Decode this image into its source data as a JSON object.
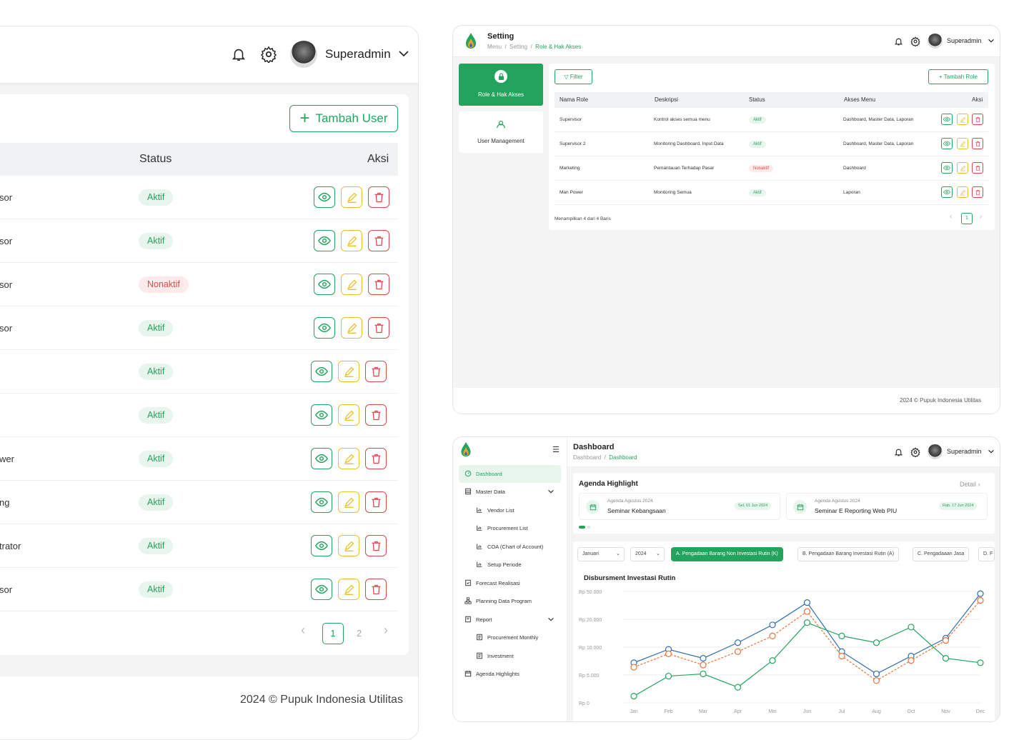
{
  "left": {
    "user_name": "Superadmin",
    "add_user_label": "Tambah User",
    "col_status": "Status",
    "col_aksi": "Aksi",
    "rows": [
      {
        "role": "sor",
        "status": "Aktif",
        "active": true
      },
      {
        "role": "sor",
        "status": "Aktif",
        "active": true
      },
      {
        "role": "sor",
        "status": "Nonaktif",
        "active": false
      },
      {
        "role": "sor",
        "status": "Aktif",
        "active": true
      },
      {
        "role": "",
        "status": "Aktif",
        "active": true
      },
      {
        "role": "",
        "status": "Aktif",
        "active": true
      },
      {
        "role": "wer",
        "status": "Aktif",
        "active": true
      },
      {
        "role": "ng",
        "status": "Aktif",
        "active": true
      },
      {
        "role": "trator",
        "status": "Aktif",
        "active": true
      },
      {
        "role": "sor",
        "status": "Aktif",
        "active": true
      }
    ],
    "pages": [
      "1",
      "2"
    ],
    "footer_year": "2024",
    "footer_company": "Pupuk Indonesia Utilitas"
  },
  "setting": {
    "title": "Setting",
    "breadcrumb": [
      "Menu",
      "Setting",
      "Role & Hak Akses"
    ],
    "user_name": "Superadmin",
    "side": [
      "Role & Hak Akses",
      "User Management"
    ],
    "filter_label": "Filter",
    "add_role_label": "Tambah Role",
    "columns": [
      "Nama Role",
      "Deskripsi",
      "Status",
      "Akses Menu",
      "Aksi"
    ],
    "rows": [
      {
        "name": "Supervisor",
        "desc": "Kontrol akses semua menu",
        "status": "Aktif",
        "active": true,
        "menu": "Dashboard, Master Data, Laporan"
      },
      {
        "name": "Supervisor 2",
        "desc": "Monitoring Dashboard, Input Data",
        "status": "Aktif",
        "active": true,
        "menu": "Dashboard, Master Data, Laporan"
      },
      {
        "name": "Marketing",
        "desc": "Pemantauan Terhadap Pasar",
        "status": "Nonaktif",
        "active": false,
        "menu": "Dashboard"
      },
      {
        "name": "Man Power",
        "desc": "Monitoring Semua",
        "status": "Aktif",
        "active": true,
        "menu": "Laporan"
      }
    ],
    "showing": "Menampilkan 4 dari 4 Baris",
    "page": "1",
    "footer_year": "2024",
    "footer_company": "Pupuk Indonesia Utilitas"
  },
  "dashboard": {
    "title": "Dashboard",
    "breadcrumb": [
      "Dashboard",
      "Dashboard"
    ],
    "user_name": "Superadmin",
    "menu": [
      {
        "label": "Dashboard",
        "level": 0,
        "active": true,
        "icon": "dashboard-icon"
      },
      {
        "label": "Master Data",
        "level": 0,
        "expand": true,
        "icon": "database-icon"
      },
      {
        "label": "Vendor List",
        "level": 1,
        "icon": "chart-icon"
      },
      {
        "label": "Procurement List",
        "level": 1,
        "icon": "chart-icon"
      },
      {
        "label": "COA (Chart of Account)",
        "level": 1,
        "icon": "chart-icon"
      },
      {
        "label": "Setup Periode",
        "level": 1,
        "icon": "chart-icon"
      },
      {
        "label": "Forecast Realisasi",
        "level": 0,
        "icon": "checklist-icon"
      },
      {
        "label": "Planning Data Program",
        "level": 0,
        "icon": "sitemap-icon"
      },
      {
        "label": "Report",
        "level": 0,
        "expand": true,
        "icon": "report-icon"
      },
      {
        "label": "Procurement Monthly",
        "level": 1,
        "icon": "doc-icon"
      },
      {
        "label": "Investment",
        "level": 1,
        "icon": "doc-icon"
      },
      {
        "label": "Agenda Highlights",
        "level": 0,
        "icon": "calendar-icon"
      }
    ],
    "agenda_title": "Agenda Highlight",
    "agenda_detail": "Detail",
    "agenda": [
      {
        "sub": "Agenda Agustus 2024",
        "title": "Seminar Kebangsaan",
        "date": "Sel, 01 Jun 2024"
      },
      {
        "sub": "Agenda Agustus 2024",
        "title": "Seminar E Reporting Web PIU",
        "date": "Rab, 17 Jun 2024"
      }
    ],
    "filters": {
      "month": "Januari",
      "year": "2024"
    },
    "tabs": [
      "A. Pengadaan Barang Non Investasi Rutin (K)",
      "B. Pengadaan Barang Investasi Rutin (A)",
      "C. Pengadaaan Jasa",
      "D. F"
    ]
  },
  "chart_data": {
    "type": "line",
    "title": "Disbursment Investasi Rutin",
    "categories": [
      "Jan",
      "Feb",
      "Mar",
      "Apr",
      "Mei",
      "Jun",
      "Jul",
      "Aug",
      "Oct",
      "Nov",
      "Dec"
    ],
    "ytick_labels": [
      "Rp 0",
      "Rp 5.000",
      "Rp 10.000",
      "Rp 20.000",
      "Rp 50.000"
    ],
    "series": [
      {
        "color": "#2f6fb3",
        "dash": false,
        "values": [
          1.8,
          2.4,
          2.0,
          2.7,
          3.5,
          4.5,
          2.3,
          1.3,
          2.1,
          2.9,
          4.9
        ]
      },
      {
        "color": "#e8743b",
        "dash": true,
        "values": [
          1.6,
          2.2,
          1.7,
          2.3,
          3.0,
          4.1,
          2.1,
          1.0,
          1.9,
          2.8,
          4.6
        ]
      },
      {
        "color": "#22a45d",
        "dash": false,
        "values": [
          0.3,
          1.2,
          1.3,
          0.7,
          1.9,
          3.6,
          3.0,
          2.7,
          3.4,
          2.0,
          1.8
        ]
      }
    ]
  },
  "colors": {
    "accent": "#22a45d",
    "danger": "#e04848",
    "warning": "#e8c12a"
  }
}
